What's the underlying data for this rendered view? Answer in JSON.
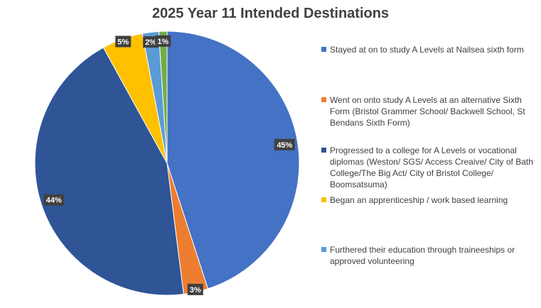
{
  "chart_data": {
    "type": "pie",
    "title": "2025 Year 11 Intended Destinations",
    "start_angle_deg": 0,
    "direction": "clockwise",
    "legend_position": "right",
    "slices": [
      {
        "label": "Stayed at on to study A Levels at Nailsea sixth form",
        "value": 45,
        "data_label": "45%",
        "color": "#4472C4"
      },
      {
        "label": "Went on onto study A Levels at an alternative Sixth Form (Bristol Grammer School/ Backwell School, St Bendans Sixth Form)",
        "value": 3,
        "data_label": "3%",
        "color": "#ED7D31"
      },
      {
        "label": "Progressed to a college for A Levels or vocational diplomas (Weston/ SGS/ Access Creaive/ City of Bath College/The Big Act/ City of Bristol College/ Boomsatsuma)",
        "value": 44,
        "data_label": "44%",
        "color": "#2F5597"
      },
      {
        "label": "Began an apprenticeship / work based learning",
        "value": 5,
        "data_label": "5%",
        "color": "#FFC000"
      },
      {
        "label": "Furthered their education through traineeships or approved volunteering",
        "value": 2,
        "data_label": "2%",
        "color": "#5B9BD5"
      },
      {
        "label": "",
        "value": 1,
        "data_label": "1%",
        "color": "#70AD47"
      }
    ]
  }
}
